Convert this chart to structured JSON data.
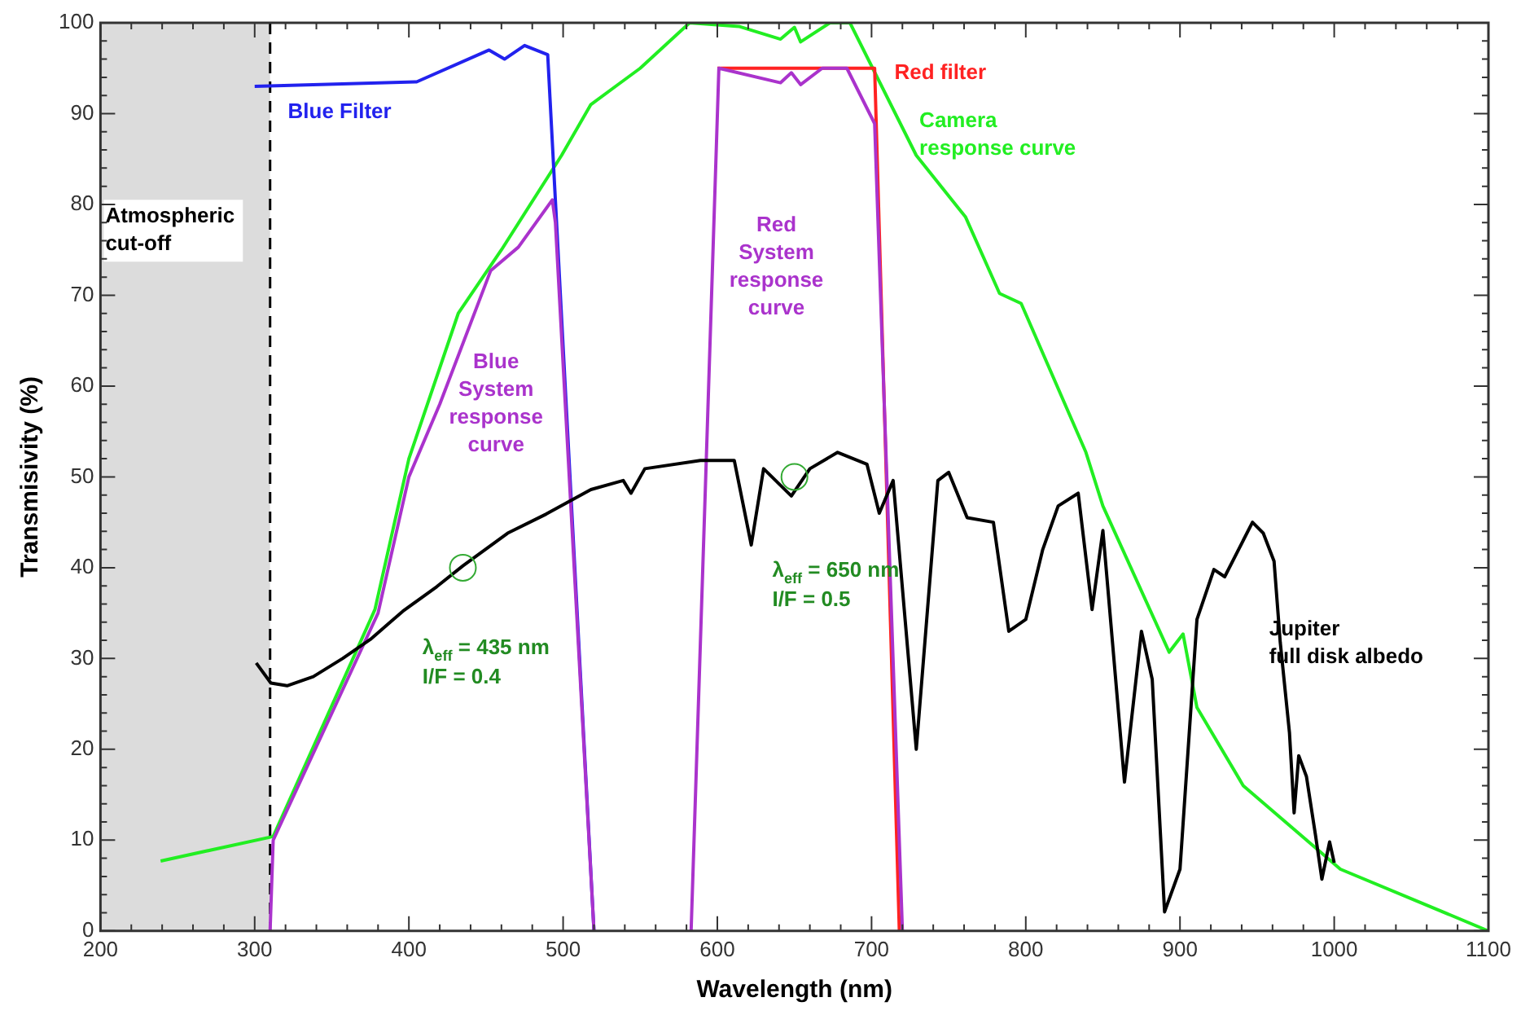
{
  "chart_data": {
    "type": "line",
    "xlabel": "Wavelength (nm)",
    "ylabel": "Transmisivity (%)",
    "xlim": [
      200,
      1100
    ],
    "xticks": [
      200,
      300,
      400,
      500,
      600,
      700,
      800,
      900,
      1000,
      1100
    ],
    "ylim": [
      0,
      100
    ],
    "yticks": [
      0,
      10,
      20,
      30,
      40,
      50,
      60,
      70,
      80,
      90,
      100
    ],
    "grid": false,
    "legend": false,
    "marker": "none",
    "line_style": "solid",
    "bands": [
      {
        "axis": "x",
        "from": 200,
        "to": 310,
        "label": "Atmospheric cut-off",
        "color": "#dcdcdc"
      }
    ],
    "ref_lines": [
      {
        "axis": "x",
        "value": 310,
        "color": "#000000",
        "line_style": "dashed"
      }
    ],
    "series": [
      {
        "name": "Camera response curve",
        "color": "#22ee22",
        "x": [
          239,
          312,
          378,
          400,
          432,
          460,
          499,
          518,
          550,
          582,
          614,
          641,
          650,
          654,
          673,
          686,
          729,
          761,
          783,
          797,
          839,
          850,
          893,
          902,
          911,
          941,
          1004,
          1100
        ],
        "values": [
          7.7,
          10.4,
          35.4,
          52,
          68,
          75,
          85.4,
          91,
          95,
          100,
          99.6,
          98.2,
          99.5,
          97.9,
          100,
          100,
          85.4,
          78.6,
          70.2,
          69.1,
          52.7,
          46.8,
          30.7,
          32.7,
          24.6,
          16,
          6.8,
          0
        ]
      },
      {
        "name": "Blue Filter",
        "color": "#2222ee",
        "x": [
          300,
          405,
          452,
          462,
          475,
          490,
          520
        ],
        "values": [
          93,
          93.5,
          97,
          96,
          97.5,
          96.5,
          0
        ]
      },
      {
        "name": "Blue System response curve",
        "color": "#aa33cc",
        "x": [
          310,
          312,
          380,
          400,
          420,
          453,
          471,
          493,
          495,
          520
        ],
        "values": [
          0,
          10,
          35,
          50,
          58,
          72.7,
          75.3,
          80.5,
          78,
          0
        ]
      },
      {
        "name": "Red filter",
        "color": "#ff2222",
        "x": [
          600,
          702,
          718
        ],
        "values": [
          95,
          95,
          0
        ]
      },
      {
        "name": "Red System response curve",
        "color": "#aa33cc",
        "x": [
          583,
          601,
          641,
          648,
          654,
          668,
          684,
          702,
          720
        ],
        "values": [
          0,
          95,
          93.4,
          94.5,
          93.2,
          95,
          95,
          88.9,
          0
        ]
      },
      {
        "name": "Jupiter full disk albedo",
        "color": "#000000",
        "x": [
          301,
          310.5,
          321,
          338,
          357,
          375,
          396,
          418,
          435,
          464,
          489,
          518,
          539,
          544,
          553,
          589,
          611,
          622,
          630,
          648,
          660,
          678,
          697,
          705,
          714,
          729,
          743,
          750,
          762,
          779,
          789,
          800,
          811,
          821,
          834,
          843,
          850,
          864,
          875,
          882,
          890,
          900,
          911,
          922,
          929,
          947,
          954,
          961,
          965,
          971,
          974,
          977,
          982,
          988,
          992,
          997,
          1000
        ],
        "values": [
          29.5,
          27.3,
          27,
          28,
          30,
          32.1,
          35.2,
          37.9,
          40.2,
          43.8,
          45.9,
          48.6,
          49.6,
          48.2,
          50.9,
          51.8,
          51.8,
          42.5,
          50.9,
          47.9,
          50.9,
          52.7,
          51.4,
          46,
          49.6,
          20,
          49.6,
          50.5,
          45.5,
          45,
          33,
          34.3,
          42,
          46.8,
          48.2,
          35.4,
          44.1,
          16.4,
          33,
          27.7,
          2.1,
          6.8,
          34.3,
          39.8,
          39,
          45,
          43.8,
          40.7,
          31.8,
          21.8,
          13,
          19.3,
          17,
          10.4,
          5.7,
          9.8,
          7.5
        ]
      },
      {
        "type": "scatter",
        "marker": "circle",
        "color": "#33aa33",
        "x": [
          435,
          650
        ],
        "values": [
          40,
          50
        ]
      }
    ],
    "annotations": [
      "λ$_{eff}$ = 435 nm\nI/F = 0.4",
      "λ$_{eff}$ = 650 nm\nI/F = 0.5"
    ]
  }
}
